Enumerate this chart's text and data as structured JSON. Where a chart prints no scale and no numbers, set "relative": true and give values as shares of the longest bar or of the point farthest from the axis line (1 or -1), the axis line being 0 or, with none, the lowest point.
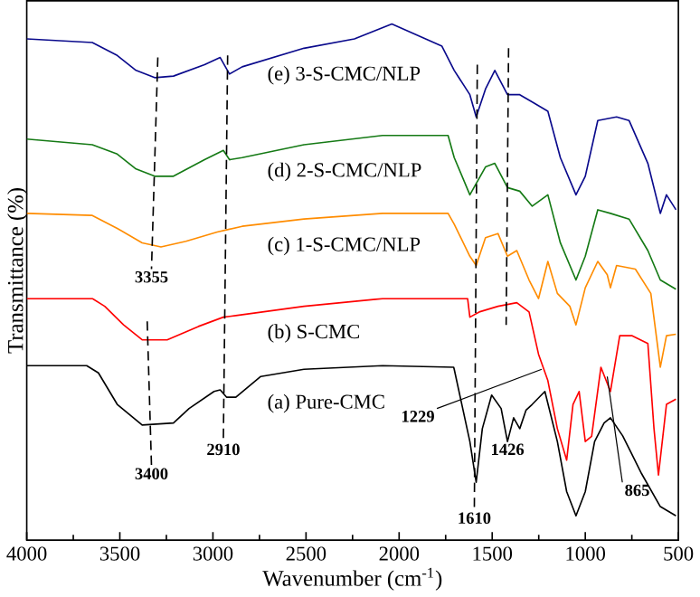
{
  "chart_data": {
    "type": "line",
    "relative": true,
    "xlabel": "Wavenumber (cm$^{-1}$)",
    "ylabel": "Transmittance (%)",
    "xlim": [
      4000,
      500
    ],
    "xticks": [
      4000,
      3500,
      3000,
      2500,
      2000,
      1500,
      1000,
      500
    ],
    "tick_labels": "x",
    "grid": false,
    "marker": "none",
    "series": [
      {
        "name": "(a) Pure-CMC",
        "color": "#000000",
        "x": [
          4000,
          3678,
          3615,
          3514,
          3380,
          3212,
          3128,
          2994,
          2961,
          2927,
          2877,
          2743,
          2511,
          2089,
          1707,
          1704,
          1620,
          1586,
          1553,
          1503,
          1452,
          1418,
          1385,
          1352,
          1318,
          1285,
          1217,
          1150,
          1100,
          1050,
          1000,
          950,
          899,
          865,
          799,
          698,
          597,
          513
        ],
        "values": [
          0.338,
          0.338,
          0.324,
          0.263,
          0.223,
          0.227,
          0.255,
          0.288,
          0.291,
          0.277,
          0.277,
          0.317,
          0.331,
          0.338,
          0.335,
          0.331,
          0.191,
          0.112,
          0.216,
          0.281,
          0.255,
          0.191,
          0.237,
          0.216,
          0.252,
          0.263,
          0.288,
          0.191,
          0.094,
          0.047,
          0.094,
          0.191,
          0.227,
          0.237,
          0.202,
          0.129,
          0.065,
          0.047
        ]
      },
      {
        "name": "(b) S-CMC",
        "color": "#ff0000",
        "x": [
          4000,
          3648,
          3581,
          3480,
          3380,
          3246,
          3078,
          2944,
          2877,
          2511,
          2089,
          1632,
          1620,
          1570,
          1469,
          1368,
          1302,
          1251,
          1201,
          1150,
          1100,
          1066,
          1033,
          1000,
          966,
          916,
          865,
          815,
          748,
          664,
          631,
          607,
          564,
          513
        ],
        "values": [
          0.468,
          0.468,
          0.453,
          0.417,
          0.388,
          0.388,
          0.414,
          0.432,
          0.435,
          0.453,
          0.468,
          0.468,
          0.432,
          0.442,
          0.453,
          0.46,
          0.442,
          0.36,
          0.309,
          0.216,
          0.155,
          0.263,
          0.288,
          0.191,
          0.201,
          0.335,
          0.288,
          0.396,
          0.396,
          0.381,
          0.216,
          0.126,
          0.263,
          0.273
        ]
      },
      {
        "name": "(c) 1-S-CMC/NLP",
        "color": "#ff8c00",
        "x": [
          4000,
          3648,
          3514,
          3380,
          3279,
          3145,
          2977,
          2927,
          2843,
          2511,
          2089,
          1737,
          1704,
          1620,
          1586,
          1536,
          1469,
          1418,
          1368,
          1302,
          1251,
          1201,
          1150,
          1083,
          1050,
          1000,
          933,
          882,
          865,
          832,
          731,
          648,
          597,
          564,
          513
        ],
        "values": [
          0.633,
          0.629,
          0.604,
          0.576,
          0.568,
          0.579,
          0.597,
          0.601,
          0.608,
          0.622,
          0.633,
          0.633,
          0.612,
          0.55,
          0.532,
          0.586,
          0.594,
          0.55,
          0.561,
          0.504,
          0.468,
          0.54,
          0.478,
          0.453,
          0.417,
          0.489,
          0.54,
          0.514,
          0.489,
          0.532,
          0.525,
          0.478,
          0.335,
          0.396,
          0.399
        ]
      },
      {
        "name": "(d) 2-S-CMC/NLP",
        "color": "#157a15",
        "x": [
          4000,
          3648,
          3514,
          3413,
          3313,
          3212,
          3045,
          2944,
          2911,
          2843,
          2511,
          2089,
          1737,
          1704,
          1620,
          1536,
          1486,
          1418,
          1352,
          1285,
          1201,
          1134,
          1050,
          1000,
          933,
          865,
          765,
          664,
          597,
          513
        ],
        "values": [
          0.777,
          0.766,
          0.748,
          0.719,
          0.705,
          0.705,
          0.737,
          0.755,
          0.737,
          0.741,
          0.766,
          0.784,
          0.784,
          0.741,
          0.669,
          0.723,
          0.73,
          0.683,
          0.676,
          0.647,
          0.669,
          0.576,
          0.504,
          0.55,
          0.64,
          0.633,
          0.622,
          0.561,
          0.504,
          0.486
        ]
      },
      {
        "name": "(e) 3-S-CMC/NLP",
        "color": "#0a0a8c",
        "x": [
          4000,
          3648,
          3514,
          3413,
          3313,
          3212,
          3045,
          2961,
          2911,
          2843,
          2511,
          2240,
          2039,
          1770,
          1704,
          1620,
          1586,
          1536,
          1486,
          1418,
          1352,
          1285,
          1201,
          1134,
          1050,
          1000,
          933,
          832,
          765,
          664,
          597,
          564,
          513
        ],
        "values": [
          0.971,
          0.964,
          0.939,
          0.91,
          0.896,
          0.899,
          0.921,
          0.935,
          0.903,
          0.917,
          0.953,
          0.971,
          1.0,
          0.957,
          0.91,
          0.863,
          0.82,
          0.874,
          0.91,
          0.863,
          0.863,
          0.849,
          0.831,
          0.741,
          0.669,
          0.705,
          0.813,
          0.82,
          0.813,
          0.73,
          0.633,
          0.669,
          0.64
        ]
      },
      {
        "color": "#000000",
        "line_style": "dashed",
        "x": [
          3296,
          3330
        ],
        "values": [
          0.935,
          0.525
        ]
      },
      {
        "color": "#000000",
        "line_style": "dashed",
        "x": [
          3353,
          3330
        ],
        "values": [
          0.424,
          0.144
        ]
      },
      {
        "color": "#000000",
        "line_style": "dashed",
        "x": [
          2921,
          2944
        ],
        "values": [
          0.939,
          0.191
        ]
      },
      {
        "color": "#000000",
        "line_style": "dashed",
        "x": [
          1580,
          1596
        ],
        "values": [
          0.921,
          0.058
        ]
      },
      {
        "color": "#000000",
        "line_style": "dashed",
        "x": [
          1412,
          1425
        ],
        "values": [
          0.953,
          0.417
        ]
      },
      {
        "color": "#000000",
        "line_style": "solid",
        "x": [
          1797,
          1234
        ],
        "values": [
          0.255,
          0.331
        ]
      },
      {
        "color": "#000000",
        "line_style": "solid",
        "x": [
          801,
          882
        ],
        "values": [
          0.112,
          0.317
        ]
      }
    ],
    "annotations": [
      {
        "text": "3355",
        "x": 3330,
        "y": 0.525
      },
      {
        "text": "3400",
        "x": 3330,
        "y": 0.144
      },
      {
        "text": "2910",
        "x": 2944,
        "y": 0.191
      },
      {
        "text": "1229",
        "x": 1797,
        "y": 0.255
      },
      {
        "text": "1610",
        "x": 1596,
        "y": 0.058
      },
      {
        "text": "1426",
        "x": 1418,
        "y": 0.191
      },
      {
        "text": "865",
        "x": 801,
        "y": 0.112
      }
    ]
  }
}
